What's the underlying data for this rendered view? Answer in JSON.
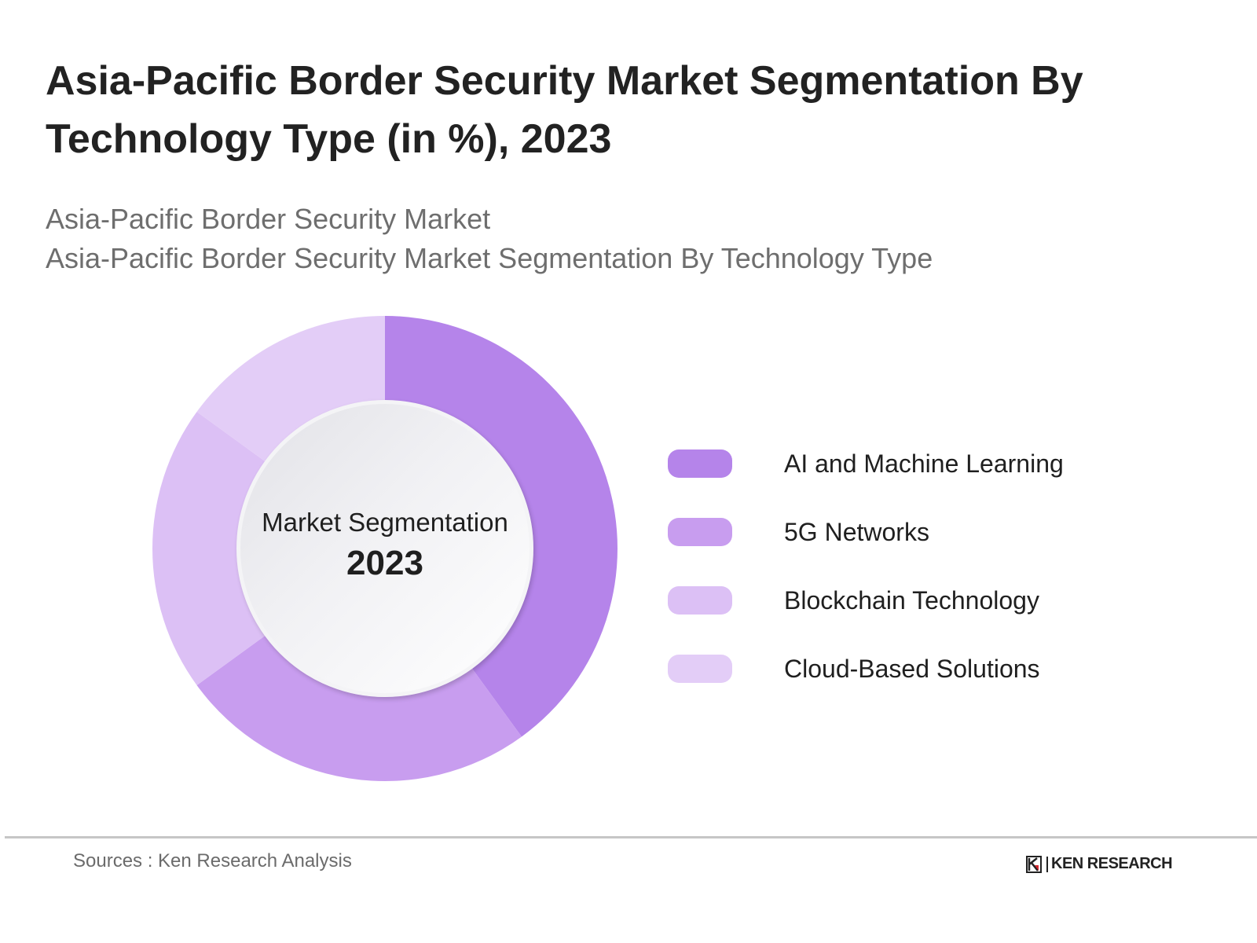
{
  "header": {
    "title": "Asia-Pacific Border Security Market Segmentation By Technology Type (in %), 2023",
    "subtitle_line1": "Asia-Pacific Border Security Market",
    "subtitle_line2": "Asia-Pacific Border Security Market Segmentation By Technology Type"
  },
  "center": {
    "label": "Market Segmentation",
    "year": "2023"
  },
  "legend": [
    {
      "label": "AI and Machine Learning",
      "color": "#b584ea"
    },
    {
      "label": "5G Networks",
      "color": "#c89def"
    },
    {
      "label": "Blockchain Technology",
      "color": "#dcc0f5"
    },
    {
      "label": "Cloud-Based Solutions",
      "color": "#e3cdf7"
    }
  ],
  "footer": {
    "source": "Sources : Ken Research Analysis",
    "logo_text": "KEN RESEARCH"
  },
  "chart_data": {
    "type": "pie",
    "subtype": "donut",
    "title": "Asia-Pacific Border Security Market Segmentation By Technology Type (in %), 2023",
    "subtitle": "Asia-Pacific Border Security Market Segmentation By Technology Type",
    "categories": [
      "AI and Machine Learning",
      "5G Networks",
      "Blockchain Technology",
      "Cloud-Based Solutions"
    ],
    "values": [
      40,
      25,
      20,
      15
    ],
    "unit": "%",
    "colors": [
      "#b584ea",
      "#c89def",
      "#dcc0f5",
      "#e3cdf7"
    ],
    "center_text": [
      "Market Segmentation",
      "2023"
    ],
    "start_angle": "12 o'clock, clockwise",
    "legend_position": "right",
    "source": "Sources : Ken Research Analysis"
  }
}
